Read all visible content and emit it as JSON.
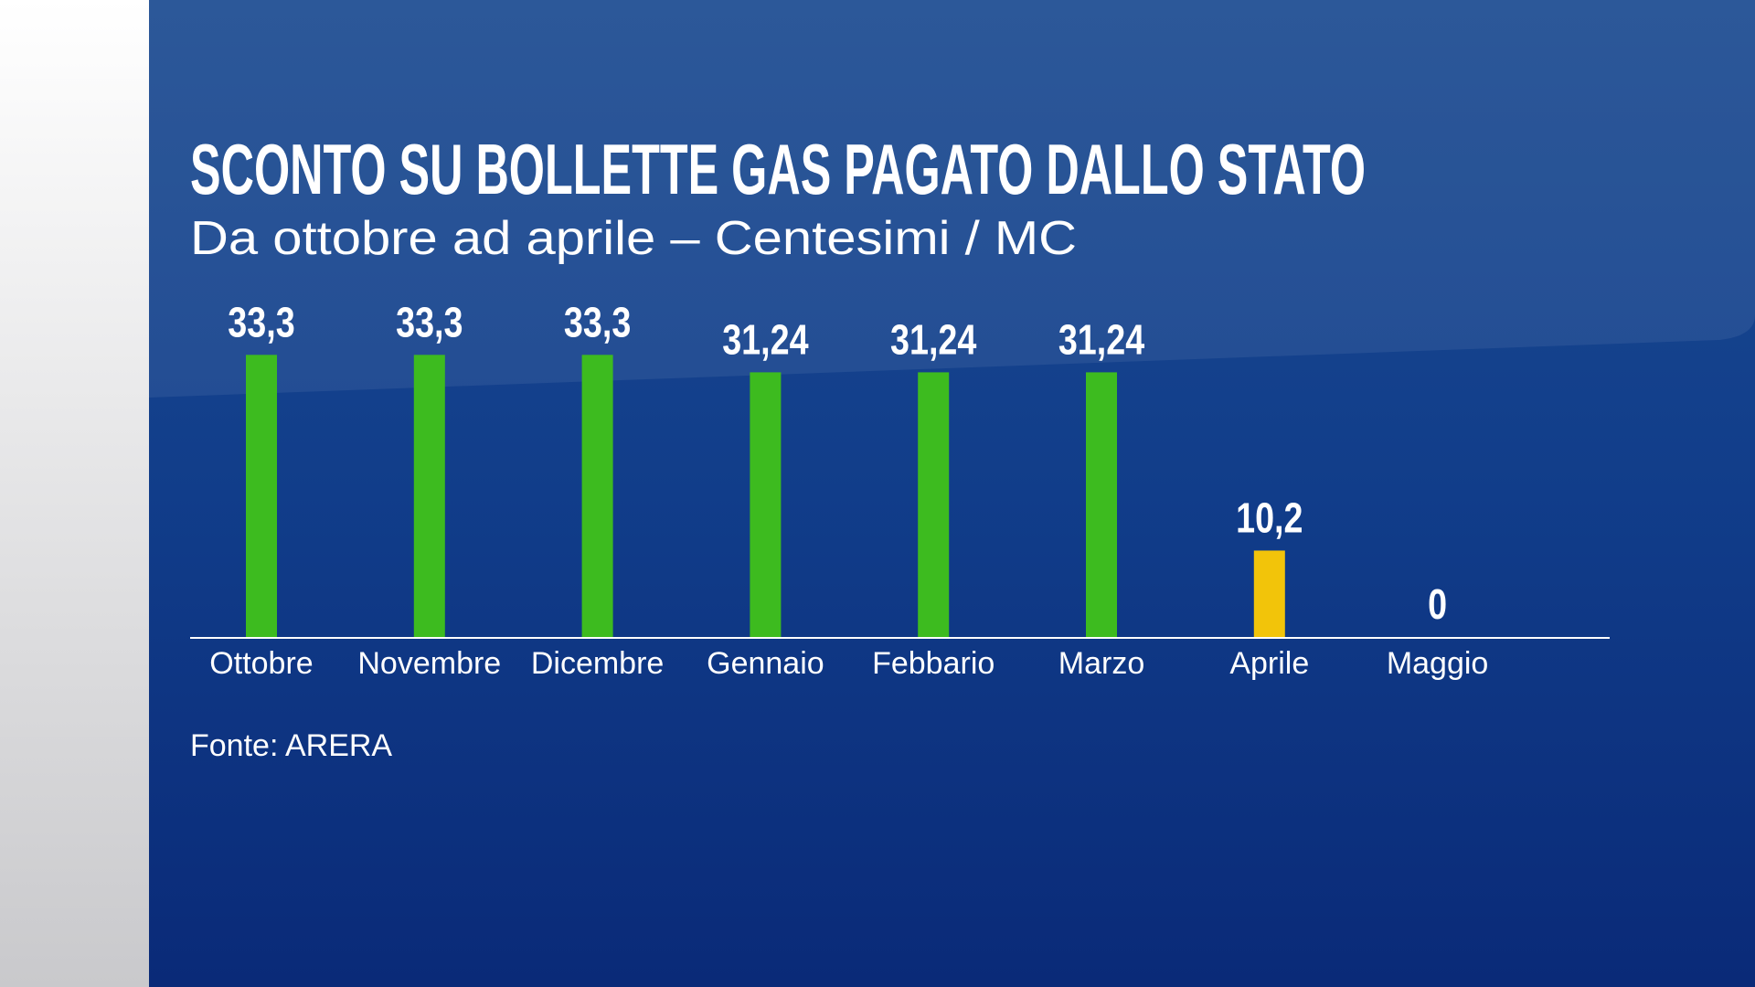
{
  "chart_data": {
    "type": "bar",
    "title": "SCONTO SU BOLLETTE GAS PAGATO DALLO STATO",
    "subtitle": "Da ottobre ad aprile – Centesimi / MC",
    "categories": [
      "Ottobre",
      "Novembre",
      "Dicembre",
      "Gennaio",
      "Febbario",
      "Marzo",
      "Aprile",
      "Maggio"
    ],
    "values": [
      33.3,
      33.3,
      33.3,
      31.24,
      31.24,
      31.24,
      10.2,
      0
    ],
    "value_labels": [
      "33,3",
      "33,3",
      "33,3",
      "31,24",
      "31,24",
      "31,24",
      "10,2",
      "0"
    ],
    "colors": [
      "#3dbb1f",
      "#3dbb1f",
      "#3dbb1f",
      "#3dbb1f",
      "#3dbb1f",
      "#3dbb1f",
      "#f2c40a",
      "#3dbb1f"
    ],
    "source": "Fonte: ARERA"
  }
}
